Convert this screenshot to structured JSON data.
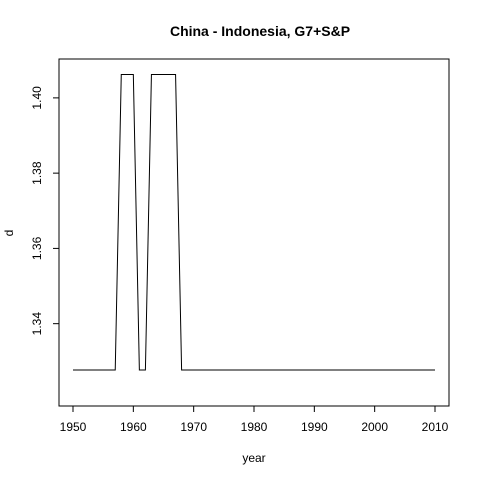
{
  "chart_data": {
    "type": "line",
    "title": "China - Indonesia, G7+S&P",
    "xlabel": "year",
    "ylabel": "d",
    "xlim": [
      1950,
      2010
    ],
    "ylim": [
      1.3245,
      1.4098
    ],
    "x_ticks": [
      1950,
      1960,
      1970,
      1980,
      1990,
      2000,
      2010
    ],
    "y_ticks": [
      1.34,
      1.36,
      1.38,
      1.4
    ],
    "y_tick_labels": [
      "1.34",
      "1.36",
      "1.38",
      "1.40"
    ],
    "grid": false,
    "series": [
      {
        "color": "#000000",
        "x": [
          1950,
          1951,
          1952,
          1953,
          1954,
          1955,
          1956,
          1957,
          1958,
          1959,
          1960,
          1961,
          1962,
          1963,
          1964,
          1965,
          1966,
          1967,
          1968,
          1969,
          1970,
          1975,
          1980,
          1985,
          1990,
          1995,
          2000,
          2005,
          2010
        ],
        "y": [
          1.3277,
          1.3277,
          1.3277,
          1.3277,
          1.3277,
          1.3277,
          1.3277,
          1.3277,
          1.4062,
          1.4062,
          1.4062,
          1.3277,
          1.3277,
          1.4062,
          1.4062,
          1.4062,
          1.4062,
          1.4062,
          1.3277,
          1.3277,
          1.3277,
          1.3277,
          1.3277,
          1.3277,
          1.3277,
          1.3277,
          1.3277,
          1.3277,
          1.3277
        ]
      }
    ]
  }
}
